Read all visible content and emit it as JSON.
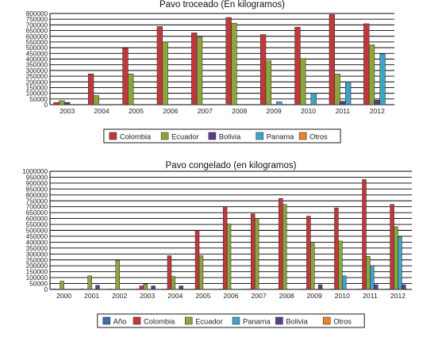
{
  "colors": {
    "Colombia": "#c0383c",
    "Ecuador": "#8ca53c",
    "Bolivia": "#5c3d89",
    "Panama": "#3ea3c5",
    "Otros": "#e8822c",
    "Año": "#3f6db3"
  },
  "chart_data": [
    {
      "type": "bar",
      "title": "Pavo troceado (En kilogramos)",
      "categories": [
        "2003",
        "2004",
        "2005",
        "2006",
        "2007",
        "2008",
        "2009",
        "2010",
        "2011",
        "2012"
      ],
      "ylim": [
        0,
        800000
      ],
      "yticks": [
        "0",
        "50000",
        "100000",
        "150000",
        "200000",
        "250000",
        "300000",
        "350000",
        "400000",
        "450000",
        "500000",
        "550000",
        "600000",
        "650000",
        "700000",
        "750000",
        "800000"
      ],
      "grid": true,
      "legend_position": "bottom",
      "series": [
        {
          "name": "Colombia",
          "values": [
            20000,
            270000,
            495000,
            685000,
            630000,
            765000,
            615000,
            680000,
            790000,
            710000
          ]
        },
        {
          "name": "Ecuador",
          "values": [
            35000,
            80000,
            270000,
            550000,
            595000,
            715000,
            385000,
            405000,
            270000,
            525000
          ]
        },
        {
          "name": "Bolivia",
          "values": [
            20000,
            0,
            0,
            0,
            0,
            0,
            0,
            0,
            30000,
            40000
          ]
        },
        {
          "name": "Panama",
          "values": [
            0,
            0,
            0,
            0,
            0,
            0,
            25000,
            100000,
            200000,
            445000
          ]
        },
        {
          "name": "Otros",
          "values": [
            0,
            0,
            0,
            0,
            0,
            0,
            0,
            0,
            0,
            0
          ]
        }
      ]
    },
    {
      "type": "bar",
      "title": "Pavo congelado (en kilogramos)",
      "categories": [
        "2000",
        "2001",
        "2002",
        "2003",
        "2004",
        "2005",
        "2006",
        "2007",
        "2008",
        "2009",
        "2010",
        "2011",
        "2012"
      ],
      "ylim": [
        0,
        1000000
      ],
      "yticks": [
        "0",
        "50000",
        "100000",
        "150000",
        "200000",
        "250000",
        "300000",
        "350000",
        "400000",
        "450000",
        "500000",
        "550000",
        "600000",
        "650000",
        "700000",
        "750000",
        "800000",
        "850000",
        "900000",
        "950000",
        "1000000"
      ],
      "grid": true,
      "legend_position": "bottom",
      "series": [
        {
          "name": "Año",
          "values": [
            2000,
            2001,
            2002,
            2003,
            2004,
            2005,
            2006,
            2007,
            2008,
            2009,
            2010,
            2011,
            2012
          ]
        },
        {
          "name": "Colombia",
          "values": [
            0,
            0,
            0,
            30000,
            285000,
            500000,
            700000,
            640000,
            770000,
            620000,
            690000,
            930000,
            720000
          ]
        },
        {
          "name": "Ecuador",
          "values": [
            70000,
            115000,
            245000,
            45000,
            110000,
            285000,
            555000,
            600000,
            720000,
            390000,
            410000,
            280000,
            530000
          ]
        },
        {
          "name": "Panama",
          "values": [
            0,
            0,
            0,
            0,
            0,
            0,
            0,
            0,
            0,
            0,
            115000,
            200000,
            445000
          ]
        },
        {
          "name": "Bolivia",
          "values": [
            0,
            35000,
            0,
            30000,
            30000,
            0,
            0,
            0,
            0,
            40000,
            0,
            40000,
            40000
          ]
        },
        {
          "name": "Otros",
          "values": [
            0,
            0,
            0,
            0,
            0,
            0,
            0,
            0,
            0,
            0,
            0,
            0,
            0
          ]
        }
      ]
    }
  ]
}
